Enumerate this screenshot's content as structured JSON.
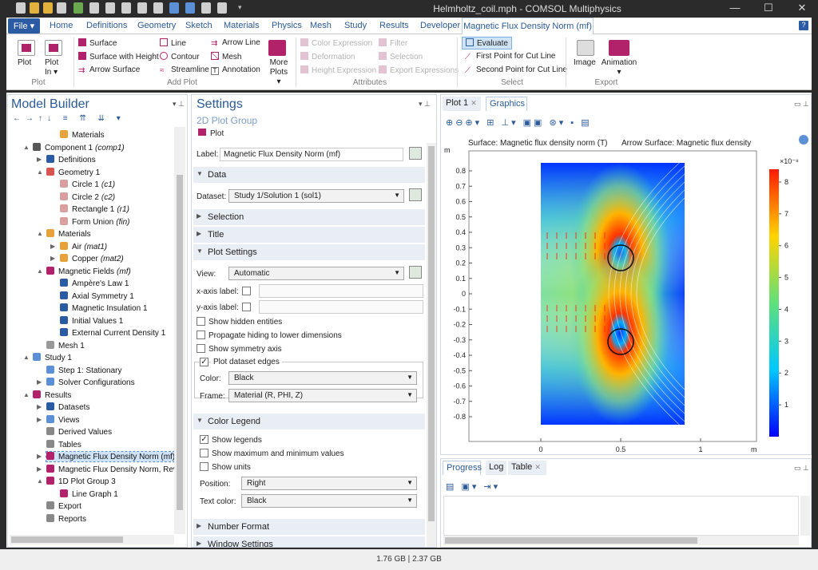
{
  "window": {
    "title": "Helmholtz_coil.mph - COMSOL Multiphysics",
    "min": "—",
    "max": "☐",
    "close": "✕"
  },
  "ribbon_tabs": {
    "file": "File ▾",
    "home": "Home",
    "definitions": "Definitions",
    "geometry": "Geometry",
    "sketch": "Sketch",
    "materials": "Materials",
    "physics": "Physics",
    "mesh": "Mesh",
    "study": "Study",
    "results": "Results",
    "developer": "Developer",
    "context": "Magnetic Flux Density Norm (mf)",
    "help": "?"
  },
  "ribbon": {
    "plot": "Plot",
    "plot_in": "Plot In ▾",
    "surface": "Surface",
    "surface_height": "Surface with Height",
    "arrow_surface": "Arrow Surface",
    "line": "Line",
    "contour": "Contour",
    "streamline": "Streamline",
    "arrow_line": "Arrow Line",
    "mesh": "Mesh",
    "annotation": "Annotation",
    "more_plots": "More Plots ▾",
    "color_expression": "Color Expression",
    "deformation": "Deformation",
    "height_expression": "Height Expression",
    "filter": "Filter",
    "selection": "Selection",
    "export_expressions": "Export Expressions",
    "evaluate": "Evaluate",
    "first_point": "First Point for Cut Line",
    "second_point": "Second Point for Cut Line",
    "image": "Image",
    "animation": "Animation ▾",
    "groups": {
      "plot": "Plot",
      "add_plot": "Add Plot",
      "attributes": "Attributes",
      "select": "Select",
      "export": "Export"
    }
  },
  "model_builder": {
    "title": "Model Builder",
    "items": [
      {
        "label": "Materials",
        "italic": ""
      },
      {
        "label": "Component 1",
        "italic": "(comp1)"
      },
      {
        "label": "Definitions",
        "italic": ""
      },
      {
        "label": "Geometry 1",
        "italic": ""
      },
      {
        "label": "Circle 1",
        "italic": "(c1)"
      },
      {
        "label": "Circle 2",
        "italic": "(c2)"
      },
      {
        "label": "Rectangle 1",
        "italic": "(r1)"
      },
      {
        "label": "Form Union",
        "italic": "(fin)"
      },
      {
        "label": "Materials",
        "italic": ""
      },
      {
        "label": "Air",
        "italic": "(mat1)"
      },
      {
        "label": "Copper",
        "italic": "(mat2)"
      },
      {
        "label": "Magnetic Fields",
        "italic": "(mf)"
      },
      {
        "label": "Ampère's Law 1",
        "italic": ""
      },
      {
        "label": "Axial Symmetry 1",
        "italic": ""
      },
      {
        "label": "Magnetic Insulation 1",
        "italic": ""
      },
      {
        "label": "Initial Values 1",
        "italic": ""
      },
      {
        "label": "External Current Density 1",
        "italic": ""
      },
      {
        "label": "Mesh 1",
        "italic": ""
      },
      {
        "label": "Study 1",
        "italic": ""
      },
      {
        "label": "Step 1: Stationary",
        "italic": ""
      },
      {
        "label": "Solver Configurations",
        "italic": ""
      },
      {
        "label": "Results",
        "italic": ""
      },
      {
        "label": "Datasets",
        "italic": ""
      },
      {
        "label": "Views",
        "italic": ""
      },
      {
        "label": "Derived Values",
        "italic": ""
      },
      {
        "label": "Tables",
        "italic": ""
      },
      {
        "label": "Magnetic Flux Density Norm (mf)",
        "italic": ""
      },
      {
        "label": "Magnetic Flux Density Norm, Revo",
        "italic": ""
      },
      {
        "label": "1D Plot Group 3",
        "italic": ""
      },
      {
        "label": "Line Graph 1",
        "italic": ""
      },
      {
        "label": "Export",
        "italic": ""
      },
      {
        "label": "Reports",
        "italic": ""
      }
    ]
  },
  "settings": {
    "title": "Settings",
    "subtitle": "2D Plot Group",
    "plot_btn": "Plot",
    "label_caption": "Label:",
    "label_value": "Magnetic Flux Density Norm (mf)",
    "sec_data": "Data",
    "dataset_caption": "Dataset:",
    "dataset_value": "Study 1/Solution 1 (sol1)",
    "sec_selection": "Selection",
    "sec_title": "Title",
    "sec_plot_settings": "Plot Settings",
    "view_caption": "View:",
    "view_value": "Automatic",
    "xaxis": "x-axis label:",
    "yaxis": "y-axis label:",
    "hidden": "Show hidden entities",
    "propagate": "Propagate hiding to lower dimensions",
    "symmetry": "Show symmetry axis",
    "edges_legend": "Plot dataset edges",
    "color_caption": "Color:",
    "color_value": "Black",
    "frame_caption": "Frame:",
    "frame_value": "Material  (R, PHI, Z)",
    "sec_color_legend": "Color Legend",
    "show_legends": "Show legends",
    "show_maxmin": "Show maximum and minimum values",
    "show_units": "Show units",
    "position_caption": "Position:",
    "position_value": "Right",
    "textcolor_caption": "Text color:",
    "textcolor_value": "Black",
    "sec_number_format": "Number Format",
    "sec_window_settings": "Window Settings"
  },
  "graphics": {
    "tab_plot": "Plot 1",
    "tab_graphics": "Graphics",
    "header_left": "Surface: Magnetic flux density norm (T)",
    "header_right": "Arrow Surface: Magnetic flux density",
    "ylabel": "m",
    "xlabel": "m",
    "y_ticks": [
      "0.8",
      "0.7",
      "0.6",
      "0.5",
      "0.4",
      "0.3",
      "0.2",
      "0.1",
      "0",
      "-0.1",
      "-0.2",
      "-0.3",
      "-0.4",
      "-0.5",
      "-0.6",
      "-0.7",
      "-0.8"
    ],
    "x_ticks": [
      "0",
      "0.5",
      "1"
    ],
    "colorbar": {
      "exponent": "×10⁻⁸",
      "ticks": [
        "8",
        "7",
        "6",
        "5",
        "4",
        "3",
        "2",
        "1"
      ],
      "max": 8.4,
      "min": 0
    }
  },
  "bottom": {
    "progress": "Progress",
    "log": "Log",
    "table": "Table"
  },
  "status": {
    "memory": "1.76 GB | 2.37 GB"
  },
  "colors": {
    "accent": "#2a5ba3",
    "ribbon_icon": "#b2226a"
  }
}
